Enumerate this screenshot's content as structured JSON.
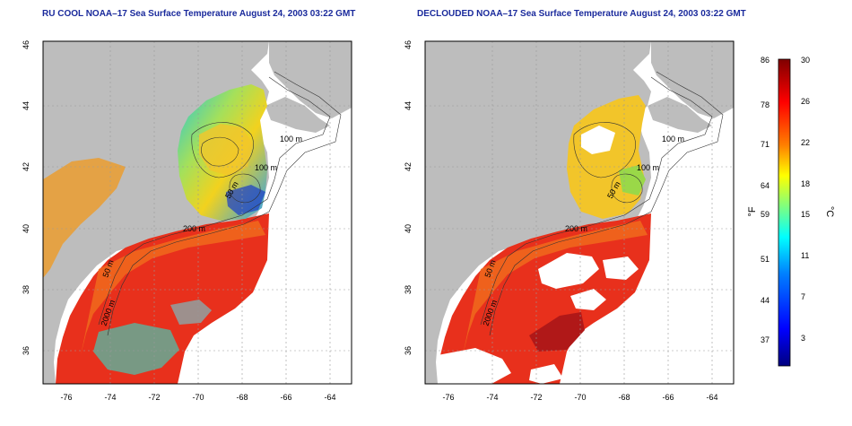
{
  "panels": [
    {
      "title": "RU COOL NOAA–17 Sea Surface Temperature August 24, 2003 03:22 GMT",
      "x_ticks": [
        "-76",
        "-74",
        "-72",
        "-70",
        "-68",
        "-66",
        "-64"
      ],
      "y_ticks": [
        "36",
        "38",
        "40",
        "42",
        "44",
        "46"
      ],
      "contour_labels": [
        "100 m",
        "100 m",
        "50 m",
        "200 m",
        "50 m",
        "2000 m"
      ]
    },
    {
      "title": "DECLOUDED NOAA–17 Sea Surface Temperature August 24, 2003 03:22 GMT",
      "x_ticks": [
        "-76",
        "-74",
        "-72",
        "-70",
        "-68",
        "-66",
        "-64"
      ],
      "y_ticks": [
        "36",
        "38",
        "40",
        "42",
        "44",
        "46"
      ],
      "contour_labels": [
        "100 m",
        "100 m",
        "50 m",
        "200 m",
        "50 m",
        "2000 m"
      ]
    }
  ],
  "colorbar": {
    "left_unit": "°F",
    "right_unit": "°C",
    "f_labels": [
      "86",
      "78",
      "71",
      "64",
      "59",
      "51",
      "44",
      "37"
    ],
    "c_labels": [
      "30",
      "26",
      "22",
      "18",
      "15",
      "11",
      "7",
      "3"
    ],
    "gradient": [
      "#00007f",
      "#0000ff",
      "#007fff",
      "#00ffff",
      "#7fff7f",
      "#ffff00",
      "#ff7f00",
      "#ff0000",
      "#7f0000"
    ]
  },
  "colors": {
    "land": "#bdbdbd",
    "warm_sst": "#e8301c",
    "title": "#1a2a9c"
  }
}
